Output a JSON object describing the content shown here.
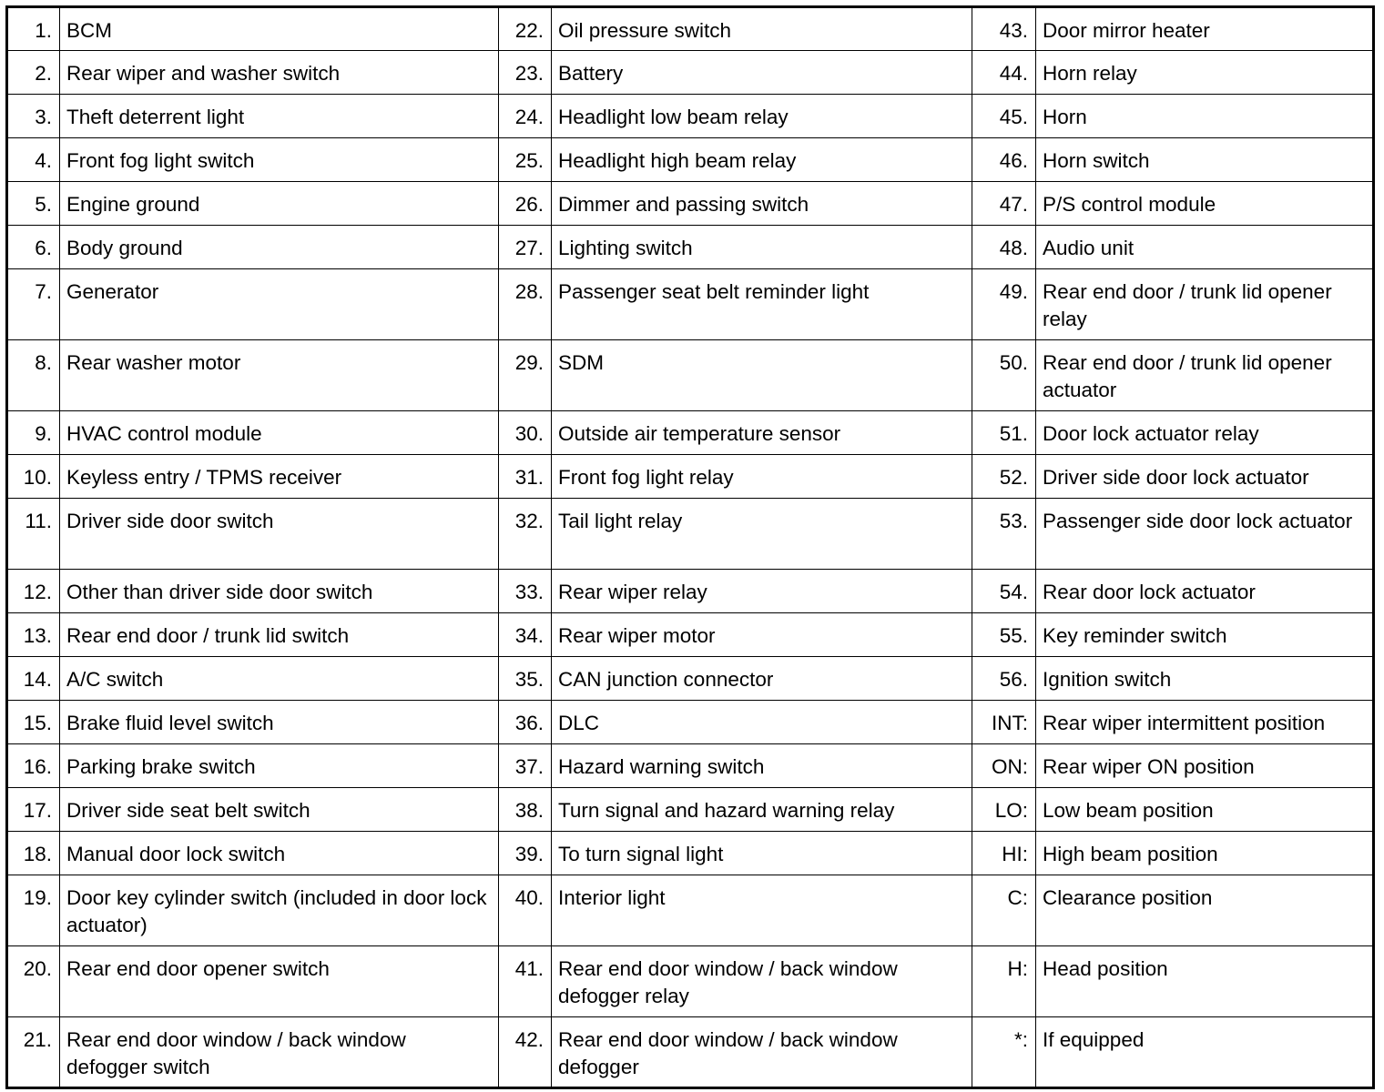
{
  "rows": [
    [
      [
        "1.",
        "BCM"
      ],
      [
        "22.",
        "Oil pressure switch"
      ],
      [
        "43.",
        "Door mirror heater"
      ]
    ],
    [
      [
        "2.",
        "Rear wiper and washer switch"
      ],
      [
        "23.",
        "Battery"
      ],
      [
        "44.",
        "Horn relay"
      ]
    ],
    [
      [
        "3.",
        "Theft deterrent light"
      ],
      [
        "24.",
        "Headlight low beam relay"
      ],
      [
        "45.",
        "Horn"
      ]
    ],
    [
      [
        "4.",
        "Front fog light switch"
      ],
      [
        "25.",
        "Headlight high beam relay"
      ],
      [
        "46.",
        "Horn switch"
      ]
    ],
    [
      [
        "5.",
        "Engine ground"
      ],
      [
        "26.",
        "Dimmer and passing switch"
      ],
      [
        "47.",
        "P/S control module"
      ]
    ],
    [
      [
        "6.",
        "Body ground"
      ],
      [
        "27.",
        "Lighting switch"
      ],
      [
        "48.",
        "Audio unit"
      ]
    ],
    [
      [
        "7.",
        "Generator"
      ],
      [
        "28.",
        "Passenger seat belt reminder light"
      ],
      [
        "49.",
        "Rear end door / trunk lid opener relay"
      ]
    ],
    [
      [
        "8.",
        "Rear washer motor"
      ],
      [
        "29.",
        "SDM"
      ],
      [
        "50.",
        "Rear end door / trunk lid opener actuator"
      ]
    ],
    [
      [
        "9.",
        "HVAC control module"
      ],
      [
        "30.",
        "Outside air temperature sensor"
      ],
      [
        "51.",
        "Door lock actuator relay"
      ]
    ],
    [
      [
        "10.",
        "Keyless entry / TPMS receiver"
      ],
      [
        "31.",
        "Front fog light relay"
      ],
      [
        "52.",
        "Driver side door lock actuator"
      ]
    ],
    [
      [
        "11.",
        "Driver side door switch"
      ],
      [
        "32.",
        "Tail light relay"
      ],
      [
        "53.",
        "Passenger side door lock actuator"
      ]
    ],
    [
      [
        "12.",
        "Other than driver side door switch"
      ],
      [
        "33.",
        "Rear wiper relay"
      ],
      [
        "54.",
        "Rear door lock actuator"
      ]
    ],
    [
      [
        "13.",
        "Rear end door / trunk lid switch"
      ],
      [
        "34.",
        "Rear wiper motor"
      ],
      [
        "55.",
        "Key reminder switch"
      ]
    ],
    [
      [
        "14.",
        "A/C switch"
      ],
      [
        "35.",
        "CAN junction connector"
      ],
      [
        "56.",
        "Ignition switch"
      ]
    ],
    [
      [
        "15.",
        "Brake fluid level switch"
      ],
      [
        "36.",
        "DLC"
      ],
      [
        "INT:",
        "Rear wiper intermittent position"
      ]
    ],
    [
      [
        "16.",
        "Parking brake switch"
      ],
      [
        "37.",
        "Hazard warning switch"
      ],
      [
        "ON:",
        "Rear wiper ON position"
      ]
    ],
    [
      [
        "17.",
        "Driver side seat belt switch"
      ],
      [
        "38.",
        "Turn signal and hazard warning relay"
      ],
      [
        "LO:",
        "Low beam position"
      ]
    ],
    [
      [
        "18.",
        "Manual door lock switch"
      ],
      [
        "39.",
        "To turn signal light"
      ],
      [
        "HI:",
        "High beam position"
      ]
    ],
    [
      [
        "19.",
        "Door key cylinder switch (included in door lock actuator)"
      ],
      [
        "40.",
        "Interior light"
      ],
      [
        "C:",
        "Clearance position"
      ]
    ],
    [
      [
        "20.",
        "Rear end door opener switch"
      ],
      [
        "41.",
        "Rear end door window / back window defogger relay"
      ],
      [
        "H:",
        "Head position"
      ]
    ],
    [
      [
        "21.",
        "Rear end door window / back window defogger switch"
      ],
      [
        "42.",
        "Rear end door window / back window defogger"
      ],
      [
        "*:",
        "If equipped"
      ]
    ]
  ]
}
